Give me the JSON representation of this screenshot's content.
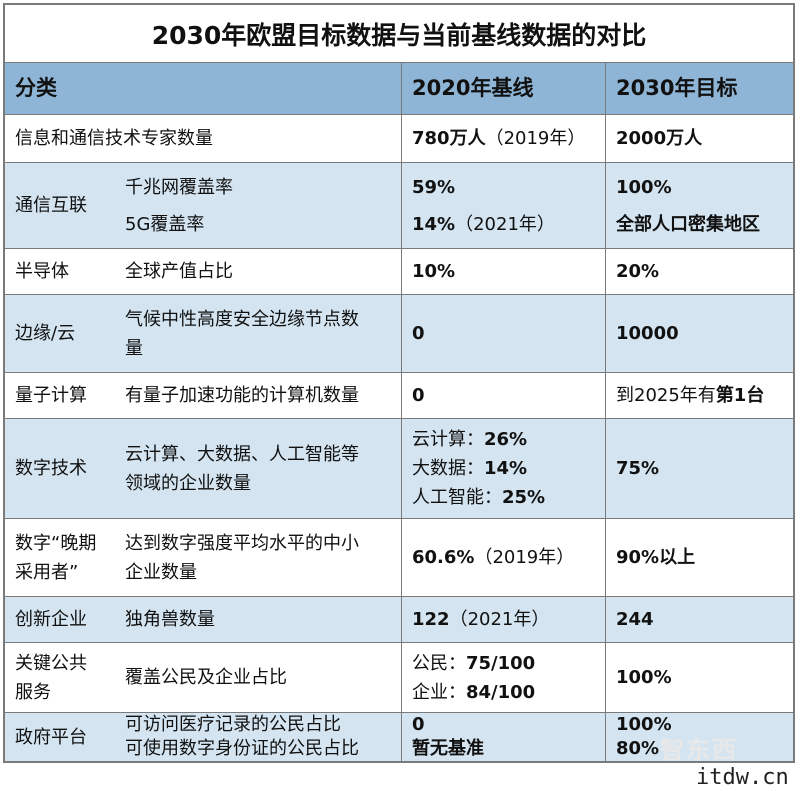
{
  "title": "2030年欧盟目标数据与当前基线数据的对比",
  "headers": {
    "category": "分类",
    "baseline": "2020年基线",
    "target": "2030年目标"
  },
  "rows": [
    {
      "cat": "",
      "ind": [
        "信息和通信技术专家数量"
      ],
      "base_b": "780万人",
      "base_n": "（2019年）",
      "target": "2000万人"
    },
    {
      "cat": "通信互联",
      "ind1": "千兆网覆盖率",
      "ind2": "5G覆盖率",
      "base1": "59%",
      "base2_b": "14%",
      "base2_n": "（2021年）",
      "target1": "100%",
      "target2": "全部人口密集地区"
    },
    {
      "cat": "半导体",
      "ind": "全球产值占比",
      "base": "10%",
      "target": "20%"
    },
    {
      "cat": "边缘/云",
      "ind_l1": "气候中性高度安全边缘节点数",
      "ind_l2": "量",
      "base": "0",
      "target": "10000"
    },
    {
      "cat": "量子计算",
      "ind": "有量子加速功能的计算机数量",
      "base": "0",
      "target_n": "到2025年有",
      "target_b": "第1台"
    },
    {
      "cat": "数字技术",
      "ind_l1": "云计算、大数据、人工智能等",
      "ind_l2": "领域的企业数量",
      "base_l1_n": "云计算：",
      "base_l1_b": "26%",
      "base_l2_n": "大数据：",
      "base_l2_b": "14%",
      "base_l3_n": "人工智能：",
      "base_l3_b": "25%",
      "target": "75%"
    },
    {
      "cat_l1": "数字“晚期",
      "cat_l2": "采用者”",
      "ind_l1": "达到数字强度平均水平的中小",
      "ind_l2": "企业数量",
      "base_b": "60.6%",
      "base_n": "（2019年）",
      "target": "90%以上"
    },
    {
      "cat": "创新企业",
      "ind": "独角兽数量",
      "base_b": "122",
      "base_n": "（2021年）",
      "target": "244"
    },
    {
      "cat_l1": "关键公共",
      "cat_l2": "服务",
      "ind": "覆盖公民及企业占比",
      "base_l1_n": "公民：",
      "base_l1_b": "75/100",
      "base_l2_n": "企业：",
      "base_l2_b": "84/100",
      "target": "100%"
    },
    {
      "cat": "政府平台",
      "ind1": "可访问医疗记录的公民占比",
      "ind2": "可使用数字身份证的公民占比",
      "base1": "0",
      "base2": "暂无基准",
      "target1": "100%",
      "target2": "80%"
    }
  ],
  "first_row_label": "信息和通信技术专家数量",
  "logo": "智东西",
  "watermark": "itdw.cn"
}
